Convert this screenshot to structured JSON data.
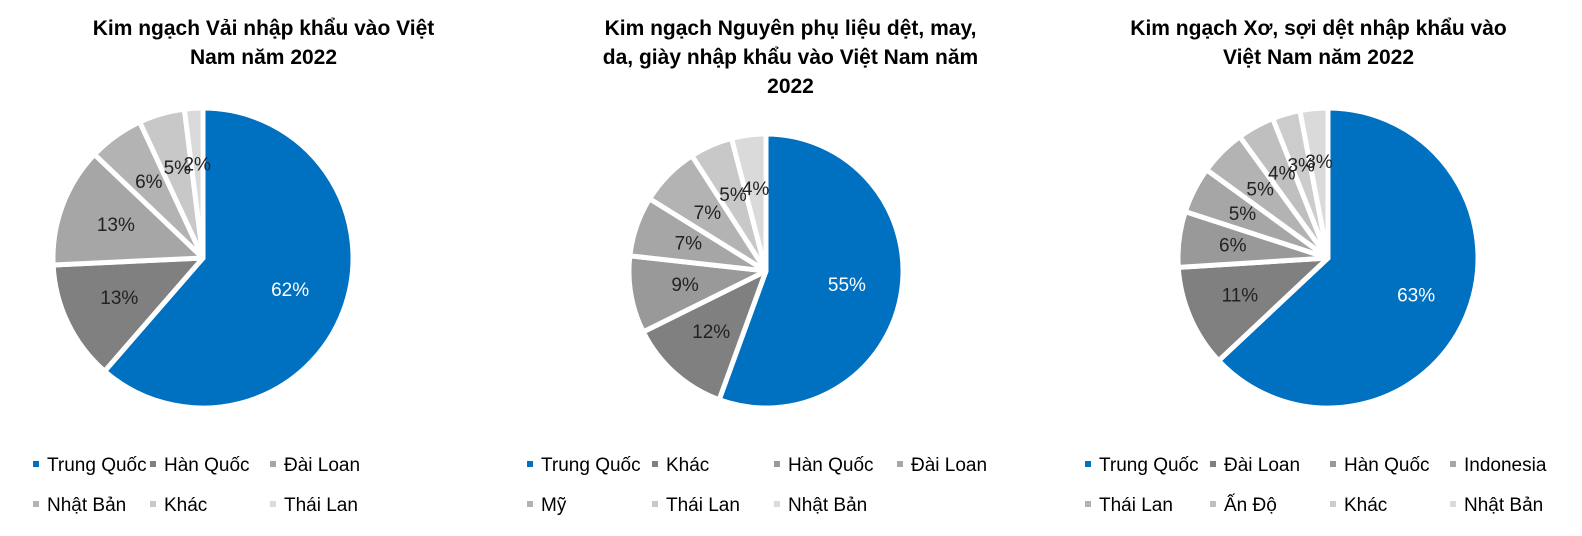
{
  "chart_data": [
    {
      "type": "pie",
      "title": "Kim ngạch Vải nhập khẩu vào Việt Nam năm 2022",
      "title_lines": [
        "Kim ngạch Vải nhập khẩu vào Việt",
        "Nam năm 2022"
      ],
      "categories": [
        "Trung Quốc",
        "Hàn Quốc",
        "Đài Loan",
        "Nhật Bản",
        "Khác",
        "Thái Lan"
      ],
      "values": [
        62,
        13,
        13,
        6,
        5,
        2
      ],
      "labels": [
        "62%",
        "13%",
        "13%",
        "6%",
        "5%",
        "2%"
      ],
      "colors": [
        "#0070C0",
        "#808080",
        "#A6A6A6",
        "#B3B3B3",
        "#C8C8C8",
        "#DADADA"
      ],
      "legend": "bottom"
    },
    {
      "type": "pie",
      "title": "Kim ngạch Nguyên phụ liệu dệt, may, da, giày nhập khẩu vào Việt Nam năm 2022",
      "title_lines": [
        "Kim ngạch Nguyên phụ liệu dệt, may,",
        "da, giày nhập khẩu vào Việt Nam năm",
        "2022"
      ],
      "categories": [
        "Trung Quốc",
        "Khác",
        "Hàn Quốc",
        "Đài Loan",
        "Mỹ",
        "Thái Lan",
        "Nhật Bản"
      ],
      "values": [
        55,
        12,
        9,
        7,
        7,
        5,
        4
      ],
      "labels": [
        "55%",
        "12%",
        "9%",
        "7%",
        "7%",
        "5%",
        "4%"
      ],
      "colors": [
        "#0070C0",
        "#808080",
        "#999999",
        "#A6A6A6",
        "#B3B3B3",
        "#C8C8C8",
        "#DADADA"
      ],
      "legend": "bottom"
    },
    {
      "type": "pie",
      "title": "Kim ngạch Xơ, sợi dệt nhập khẩu vào Việt Nam năm 2022",
      "title_lines": [
        "Kim ngạch Xơ, sợi dệt nhập khẩu vào",
        "Việt Nam năm 2022"
      ],
      "categories": [
        "Trung Quốc",
        "Đài Loan",
        "Hàn Quốc",
        "Indonesia",
        "Thái Lan",
        "Ấn Độ",
        "Khác",
        "Nhật Bản"
      ],
      "values": [
        63,
        11,
        6,
        5,
        5,
        4,
        3,
        3
      ],
      "labels": [
        "63%",
        "11%",
        "6%",
        "5%",
        "5%",
        "4%",
        "3%",
        "3%"
      ],
      "colors": [
        "#0070C0",
        "#808080",
        "#999999",
        "#A6A6A6",
        "#B3B3B3",
        "#BFBFBF",
        "#CCCCCC",
        "#DADADA"
      ],
      "legend": "bottom"
    }
  ]
}
